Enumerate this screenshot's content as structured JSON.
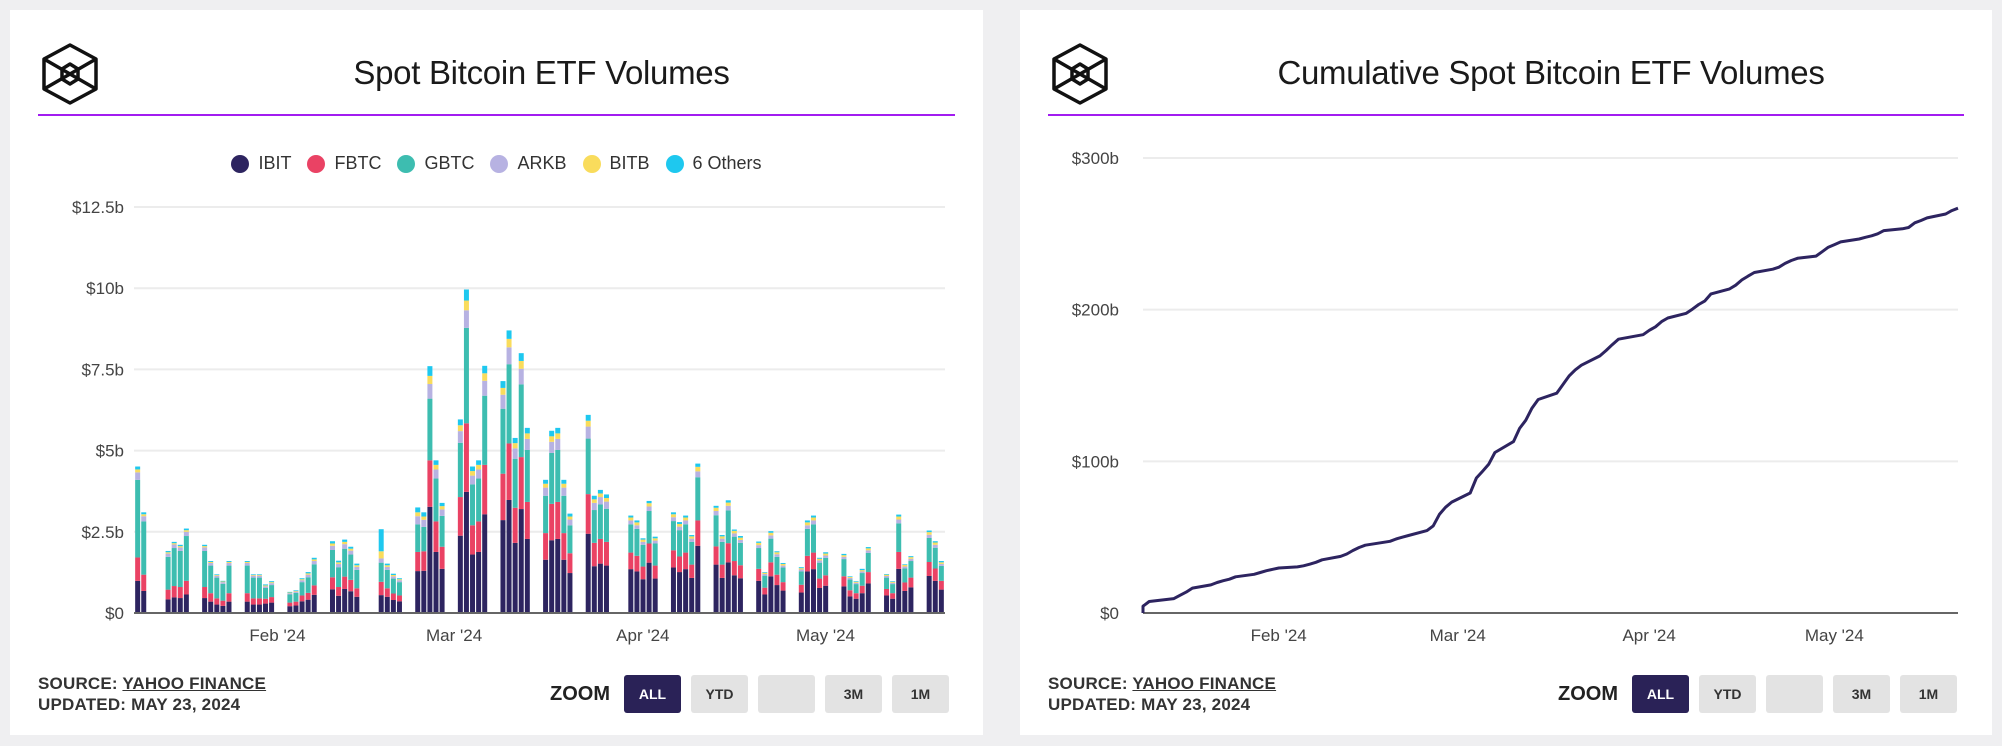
{
  "colors": {
    "IBIT": "#2d2460",
    "FBTC": "#ea4264",
    "GBTC": "#3dbdb0",
    "ARKB": "#b7b2e2",
    "BITB": "#f9dc5c",
    "6 Others": "#1ec8ef",
    "accent_rule": "#a21cf0",
    "line": "#2d2460",
    "zoom_active": "#2a2257"
  },
  "panels": [
    {
      "title": "Spot Bitcoin ETF Volumes",
      "logo_icon": "cube-hexagon-logo",
      "source_label": "SOURCE:",
      "source_name": "YAHOO FINANCE",
      "updated": "UPDATED: MAY 23, 2024",
      "zoom_label": "ZOOM",
      "zoom_buttons": [
        "ALL",
        "YTD",
        "",
        "3M",
        "1M"
      ],
      "zoom_active": "ALL"
    },
    {
      "title": "Cumulative Spot Bitcoin ETF Volumes",
      "logo_icon": "cube-hexagon-logo",
      "source_label": "SOURCE:",
      "source_name": "YAHOO FINANCE",
      "updated": "UPDATED: MAY 23, 2024",
      "zoom_label": "ZOOM",
      "zoom_buttons": [
        "ALL",
        "YTD",
        "",
        "3M",
        "1M"
      ],
      "zoom_active": "ALL"
    }
  ],
  "chart_data": [
    {
      "type": "bar",
      "stacked": true,
      "title": "Spot Bitcoin ETF Volumes",
      "legend": [
        "IBIT",
        "FBTC",
        "GBTC",
        "ARKB",
        "BITB",
        "6 Others"
      ],
      "legend_position": "top",
      "ylim": [
        0,
        12.5
      ],
      "yticks": [
        "$0",
        "$2.5b",
        "$5b",
        "$7.5b",
        "$10b",
        "$12.5b"
      ],
      "ytick_values": [
        0,
        2.5,
        5,
        7.5,
        10,
        12.5
      ],
      "xticks": [
        "Feb '24",
        "Mar '24",
        "Apr '24",
        "May '24"
      ],
      "xtick_dates": [
        "2024-02-01",
        "2024-03-01",
        "2024-04-01",
        "2024-05-01"
      ],
      "grid": true,
      "unit": "$b",
      "x": [
        "2024-01-11",
        "2024-01-12",
        "2024-01-16",
        "2024-01-17",
        "2024-01-18",
        "2024-01-19",
        "2024-01-22",
        "2024-01-23",
        "2024-01-24",
        "2024-01-25",
        "2024-01-26",
        "2024-01-29",
        "2024-01-30",
        "2024-01-31",
        "2024-02-01",
        "2024-02-02",
        "2024-02-05",
        "2024-02-06",
        "2024-02-07",
        "2024-02-08",
        "2024-02-09",
        "2024-02-12",
        "2024-02-13",
        "2024-02-14",
        "2024-02-15",
        "2024-02-16",
        "2024-02-20",
        "2024-02-21",
        "2024-02-22",
        "2024-02-23",
        "2024-02-26",
        "2024-02-27",
        "2024-02-28",
        "2024-02-29",
        "2024-03-01",
        "2024-03-04",
        "2024-03-05",
        "2024-03-06",
        "2024-03-07",
        "2024-03-08",
        "2024-03-11",
        "2024-03-12",
        "2024-03-13",
        "2024-03-14",
        "2024-03-15",
        "2024-03-18",
        "2024-03-19",
        "2024-03-20",
        "2024-03-21",
        "2024-03-22",
        "2024-03-25",
        "2024-03-26",
        "2024-03-27",
        "2024-03-28",
        "2024-04-01",
        "2024-04-02",
        "2024-04-03",
        "2024-04-04",
        "2024-04-05",
        "2024-04-08",
        "2024-04-09",
        "2024-04-10",
        "2024-04-11",
        "2024-04-12",
        "2024-04-15",
        "2024-04-16",
        "2024-04-17",
        "2024-04-18",
        "2024-04-19",
        "2024-04-22",
        "2024-04-23",
        "2024-04-24",
        "2024-04-25",
        "2024-04-26",
        "2024-04-29",
        "2024-04-30",
        "2024-05-01",
        "2024-05-02",
        "2024-05-03",
        "2024-05-06",
        "2024-05-07",
        "2024-05-08",
        "2024-05-09",
        "2024-05-10",
        "2024-05-13",
        "2024-05-14",
        "2024-05-15",
        "2024-05-16",
        "2024-05-17",
        "2024-05-20",
        "2024-05-21",
        "2024-05-22"
      ],
      "series": [
        {
          "name": "IBIT",
          "values": [
            0.99,
            0.68,
            0.42,
            0.48,
            0.46,
            0.57,
            0.46,
            0.35,
            0.26,
            0.22,
            0.35,
            0.35,
            0.26,
            0.26,
            0.29,
            0.32,
            0.21,
            0.23,
            0.36,
            0.41,
            0.56,
            0.73,
            0.53,
            0.74,
            0.67,
            0.5,
            0.55,
            0.5,
            0.4,
            0.36,
            1.29,
            1.3,
            3.27,
            1.88,
            1.36,
            2.38,
            3.73,
            1.8,
            1.88,
            3.04,
            2.86,
            3.48,
            2.16,
            3.2,
            2.28,
            1.64,
            2.24,
            2.28,
            1.64,
            1.23,
            2.44,
            1.44,
            1.52,
            1.46,
            1.35,
            1.28,
            1.04,
            1.55,
            1.06,
            1.4,
            1.26,
            1.35,
            1.08,
            2.07,
            1.49,
            1.08,
            1.56,
            1.16,
            1.07,
            0.99,
            0.57,
            1.13,
            0.86,
            0.69,
            0.63,
            1.28,
            1.35,
            0.77,
            0.84,
            0.82,
            0.51,
            0.44,
            0.61,
            0.91,
            0.54,
            0.44,
            1.36,
            0.68,
            0.79,
            1.14,
            0.99,
            0.72
          ]
        },
        {
          "name": "FBTC",
          "values": [
            0.72,
            0.5,
            0.3,
            0.35,
            0.34,
            0.42,
            0.34,
            0.26,
            0.19,
            0.16,
            0.26,
            0.26,
            0.19,
            0.19,
            0.15,
            0.17,
            0.11,
            0.12,
            0.18,
            0.21,
            0.29,
            0.37,
            0.27,
            0.38,
            0.35,
            0.26,
            0.41,
            0.26,
            0.2,
            0.18,
            0.59,
            0.6,
            1.43,
            0.94,
            0.68,
            1.19,
            2.11,
            0.9,
            0.94,
            1.52,
            1.43,
            1.74,
            1.08,
            1.6,
            1.14,
            0.82,
            1.12,
            1.14,
            0.82,
            0.61,
            1.22,
            0.72,
            0.76,
            0.73,
            0.51,
            0.48,
            0.39,
            0.59,
            0.4,
            0.53,
            0.48,
            0.51,
            0.41,
            0.78,
            0.56,
            0.41,
            0.59,
            0.44,
            0.4,
            0.37,
            0.21,
            0.43,
            0.32,
            0.26,
            0.24,
            0.48,
            0.51,
            0.29,
            0.32,
            0.31,
            0.19,
            0.17,
            0.23,
            0.35,
            0.2,
            0.17,
            0.52,
            0.26,
            0.3,
            0.43,
            0.38,
            0.27
          ]
        },
        {
          "name": "GBTC",
          "values": [
            2.39,
            1.64,
            1.01,
            1.17,
            1.11,
            1.38,
            1.11,
            0.85,
            0.64,
            0.52,
            0.85,
            0.85,
            0.64,
            0.64,
            0.33,
            0.37,
            0.25,
            0.27,
            0.41,
            0.48,
            0.65,
            0.84,
            0.61,
            0.86,
            0.78,
            0.57,
            0.59,
            0.57,
            0.46,
            0.41,
            0.85,
            0.75,
            1.9,
            1.32,
            0.95,
            1.67,
            2.94,
            1.26,
            1.32,
            2.13,
            2.0,
            2.44,
            1.51,
            2.24,
            1.6,
            1.15,
            1.57,
            1.6,
            1.15,
            0.86,
            1.71,
            1.01,
            1.06,
            1.02,
            0.87,
            0.83,
            0.67,
            1.0,
            0.68,
            0.9,
            0.81,
            0.87,
            0.7,
            1.33,
            0.96,
            0.7,
            1.01,
            0.75,
            0.69,
            0.64,
            0.37,
            0.73,
            0.55,
            0.45,
            0.41,
            0.83,
            0.87,
            0.49,
            0.54,
            0.53,
            0.33,
            0.28,
            0.39,
            0.59,
            0.35,
            0.28,
            0.88,
            0.43,
            0.51,
            0.74,
            0.64,
            0.46
          ]
        },
        {
          "name": "ARKB",
          "values": [
            0.23,
            0.16,
            0.1,
            0.11,
            0.11,
            0.13,
            0.11,
            0.08,
            0.06,
            0.05,
            0.08,
            0.08,
            0.06,
            0.06,
            0.05,
            0.06,
            0.04,
            0.04,
            0.06,
            0.08,
            0.1,
            0.13,
            0.1,
            0.14,
            0.12,
            0.09,
            0.13,
            0.09,
            0.07,
            0.06,
            0.25,
            0.22,
            0.45,
            0.28,
            0.2,
            0.36,
            0.54,
            0.27,
            0.28,
            0.46,
            0.43,
            0.52,
            0.32,
            0.48,
            0.34,
            0.25,
            0.34,
            0.34,
            0.25,
            0.18,
            0.37,
            0.22,
            0.23,
            0.22,
            0.12,
            0.11,
            0.09,
            0.14,
            0.09,
            0.12,
            0.11,
            0.12,
            0.1,
            0.18,
            0.13,
            0.1,
            0.14,
            0.1,
            0.09,
            0.09,
            0.05,
            0.1,
            0.08,
            0.06,
            0.06,
            0.11,
            0.12,
            0.07,
            0.07,
            0.07,
            0.05,
            0.04,
            0.05,
            0.08,
            0.05,
            0.04,
            0.12,
            0.06,
            0.07,
            0.1,
            0.09,
            0.06
          ]
        },
        {
          "name": "BITB",
          "values": [
            0.09,
            0.06,
            0.04,
            0.04,
            0.04,
            0.05,
            0.04,
            0.03,
            0.02,
            0.02,
            0.03,
            0.03,
            0.02,
            0.02,
            0.03,
            0.03,
            0.02,
            0.02,
            0.03,
            0.04,
            0.05,
            0.07,
            0.05,
            0.07,
            0.06,
            0.05,
            0.22,
            0.05,
            0.04,
            0.03,
            0.12,
            0.1,
            0.25,
            0.14,
            0.1,
            0.18,
            0.3,
            0.14,
            0.14,
            0.23,
            0.21,
            0.26,
            0.16,
            0.24,
            0.17,
            0.12,
            0.17,
            0.17,
            0.12,
            0.09,
            0.18,
            0.11,
            0.11,
            0.11,
            0.09,
            0.09,
            0.07,
            0.1,
            0.07,
            0.09,
            0.08,
            0.09,
            0.07,
            0.14,
            0.1,
            0.07,
            0.1,
            0.08,
            0.07,
            0.07,
            0.04,
            0.08,
            0.06,
            0.05,
            0.04,
            0.09,
            0.09,
            0.05,
            0.06,
            0.05,
            0.03,
            0.03,
            0.04,
            0.06,
            0.04,
            0.03,
            0.09,
            0.05,
            0.05,
            0.08,
            0.07,
            0.05
          ]
        },
        {
          "name": "6 Others",
          "values": [
            0.09,
            0.06,
            0.04,
            0.04,
            0.04,
            0.05,
            0.04,
            0.03,
            0.02,
            0.02,
            0.03,
            0.03,
            0.02,
            0.02,
            0.03,
            0.03,
            0.02,
            0.02,
            0.03,
            0.04,
            0.05,
            0.07,
            0.05,
            0.07,
            0.06,
            0.05,
            0.68,
            0.05,
            0.04,
            0.03,
            0.15,
            0.13,
            0.3,
            0.14,
            0.1,
            0.18,
            0.34,
            0.14,
            0.14,
            0.23,
            0.21,
            0.26,
            0.16,
            0.24,
            0.17,
            0.12,
            0.17,
            0.17,
            0.12,
            0.09,
            0.18,
            0.11,
            0.11,
            0.11,
            0.06,
            0.06,
            0.04,
            0.07,
            0.05,
            0.06,
            0.06,
            0.06,
            0.04,
            0.1,
            0.06,
            0.04,
            0.07,
            0.04,
            0.05,
            0.04,
            0.02,
            0.05,
            0.03,
            0.03,
            0.03,
            0.06,
            0.06,
            0.03,
            0.04,
            0.04,
            0.02,
            0.02,
            0.04,
            0.04,
            0.02,
            0.02,
            0.06,
            0.02,
            0.03,
            0.05,
            0.04,
            0.04
          ]
        }
      ]
    },
    {
      "type": "line",
      "title": "Cumulative Spot Bitcoin ETF Volumes",
      "ylim": [
        0,
        300
      ],
      "yticks": [
        "$0",
        "$100b",
        "$200b",
        "$300b"
      ],
      "ytick_values": [
        0,
        100,
        200,
        300
      ],
      "xticks": [
        "Feb '24",
        "Mar '24",
        "Apr '24",
        "May '24"
      ],
      "xtick_dates": [
        "2024-02-01",
        "2024-03-01",
        "2024-04-01",
        "2024-05-01"
      ],
      "grid": true,
      "unit": "$b",
      "x": [
        "2024-01-11",
        "2024-01-12",
        "2024-01-16",
        "2024-01-17",
        "2024-01-18",
        "2024-01-19",
        "2024-01-22",
        "2024-01-23",
        "2024-01-24",
        "2024-01-25",
        "2024-01-26",
        "2024-01-29",
        "2024-01-30",
        "2024-01-31",
        "2024-02-01",
        "2024-02-02",
        "2024-02-05",
        "2024-02-06",
        "2024-02-07",
        "2024-02-08",
        "2024-02-09",
        "2024-02-12",
        "2024-02-13",
        "2024-02-14",
        "2024-02-15",
        "2024-02-16",
        "2024-02-20",
        "2024-02-21",
        "2024-02-22",
        "2024-02-23",
        "2024-02-26",
        "2024-02-27",
        "2024-02-28",
        "2024-02-29",
        "2024-03-01",
        "2024-03-04",
        "2024-03-05",
        "2024-03-06",
        "2024-03-07",
        "2024-03-08",
        "2024-03-11",
        "2024-03-12",
        "2024-03-13",
        "2024-03-14",
        "2024-03-15",
        "2024-03-18",
        "2024-03-19",
        "2024-03-20",
        "2024-03-21",
        "2024-03-22",
        "2024-03-25",
        "2024-03-26",
        "2024-03-27",
        "2024-03-28",
        "2024-04-01",
        "2024-04-02",
        "2024-04-03",
        "2024-04-04",
        "2024-04-05",
        "2024-04-08",
        "2024-04-09",
        "2024-04-10",
        "2024-04-11",
        "2024-04-12",
        "2024-04-15",
        "2024-04-16",
        "2024-04-17",
        "2024-04-18",
        "2024-04-19",
        "2024-04-22",
        "2024-04-23",
        "2024-04-24",
        "2024-04-25",
        "2024-04-26",
        "2024-04-29",
        "2024-04-30",
        "2024-05-01",
        "2024-05-02",
        "2024-05-03",
        "2024-05-06",
        "2024-05-07",
        "2024-05-08",
        "2024-05-09",
        "2024-05-10",
        "2024-05-13",
        "2024-05-14",
        "2024-05-15",
        "2024-05-16",
        "2024-05-17",
        "2024-05-20",
        "2024-05-21",
        "2024-05-22"
      ],
      "values": [
        4.5,
        7.6,
        9.5,
        11.7,
        13.8,
        16.4,
        18.5,
        20.1,
        21.3,
        22.3,
        23.9,
        25.5,
        26.7,
        27.9,
        28.8,
        29.7,
        30.4,
        31.1,
        32.2,
        33.4,
        35.1,
        37.3,
        38.9,
        41.2,
        43.2,
        44.7,
        47.3,
        48.8,
        50.0,
        51.1,
        54.3,
        57.4,
        65.0,
        69.7,
        73.1,
        79.1,
        89.0,
        93.5,
        98.2,
        105.8,
        113.0,
        121.7,
        127.1,
        135.1,
        140.8,
        144.9,
        150.5,
        156.2,
        160.3,
        163.4,
        169.5,
        173.1,
        176.9,
        180.5,
        183.5,
        186.4,
        188.7,
        192.1,
        194.5,
        197.6,
        200.4,
        203.4,
        205.8,
        210.4,
        213.7,
        216.1,
        219.6,
        222.1,
        224.5,
        226.7,
        228.0,
        230.5,
        232.4,
        233.9,
        235.3,
        238.2,
        241.2,
        242.9,
        244.7,
        246.6,
        247.7,
        248.7,
        250.0,
        252.1,
        253.3,
        254.2,
        257.3,
        258.8,
        260.5,
        263.1,
        265.3,
        266.9
      ]
    }
  ]
}
